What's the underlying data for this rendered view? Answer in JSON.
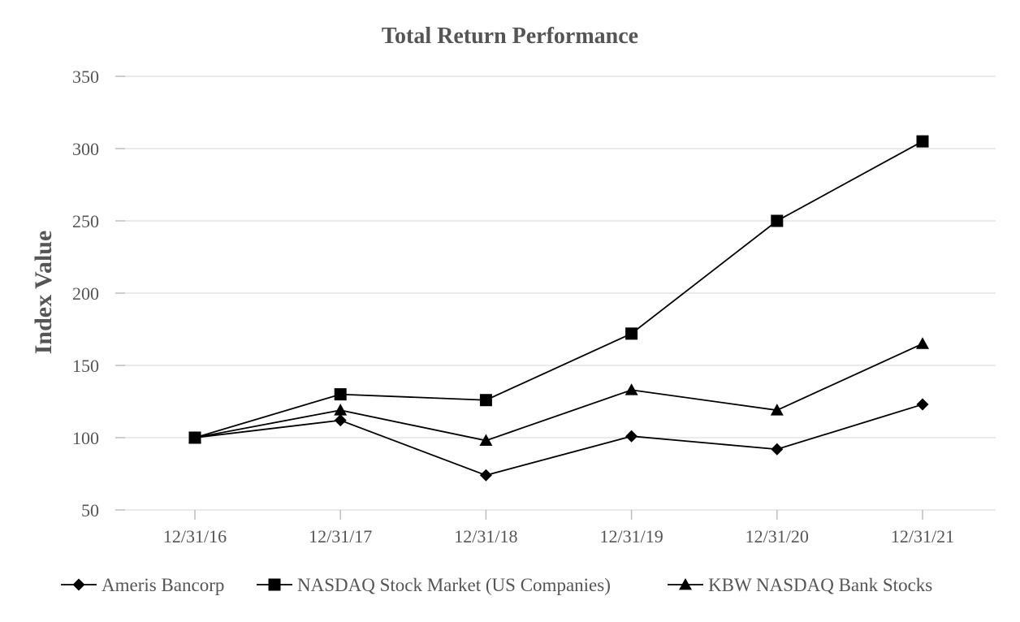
{
  "chart_data": {
    "type": "line",
    "title": "Total Return Performance",
    "xlabel": "",
    "ylabel": "Index Value",
    "categories": [
      "12/31/16",
      "12/31/17",
      "12/31/18",
      "12/31/19",
      "12/31/20",
      "12/31/21"
    ],
    "ylim": [
      50,
      350
    ],
    "yticks": [
      50,
      100,
      150,
      200,
      250,
      300,
      350
    ],
    "grid": true,
    "legend_position": "bottom",
    "series": [
      {
        "name": "Ameris Bancorp",
        "marker": "diamond",
        "color": "#000000",
        "values": [
          100,
          112,
          74,
          101,
          92,
          123
        ]
      },
      {
        "name": "NASDAQ Stock Market (US Companies)",
        "marker": "square",
        "color": "#000000",
        "values": [
          100,
          130,
          126,
          172,
          250,
          305
        ]
      },
      {
        "name": "KBW NASDAQ Bank Stocks",
        "marker": "triangle",
        "color": "#000000",
        "values": [
          100,
          119,
          98,
          133,
          119,
          165
        ]
      }
    ]
  }
}
